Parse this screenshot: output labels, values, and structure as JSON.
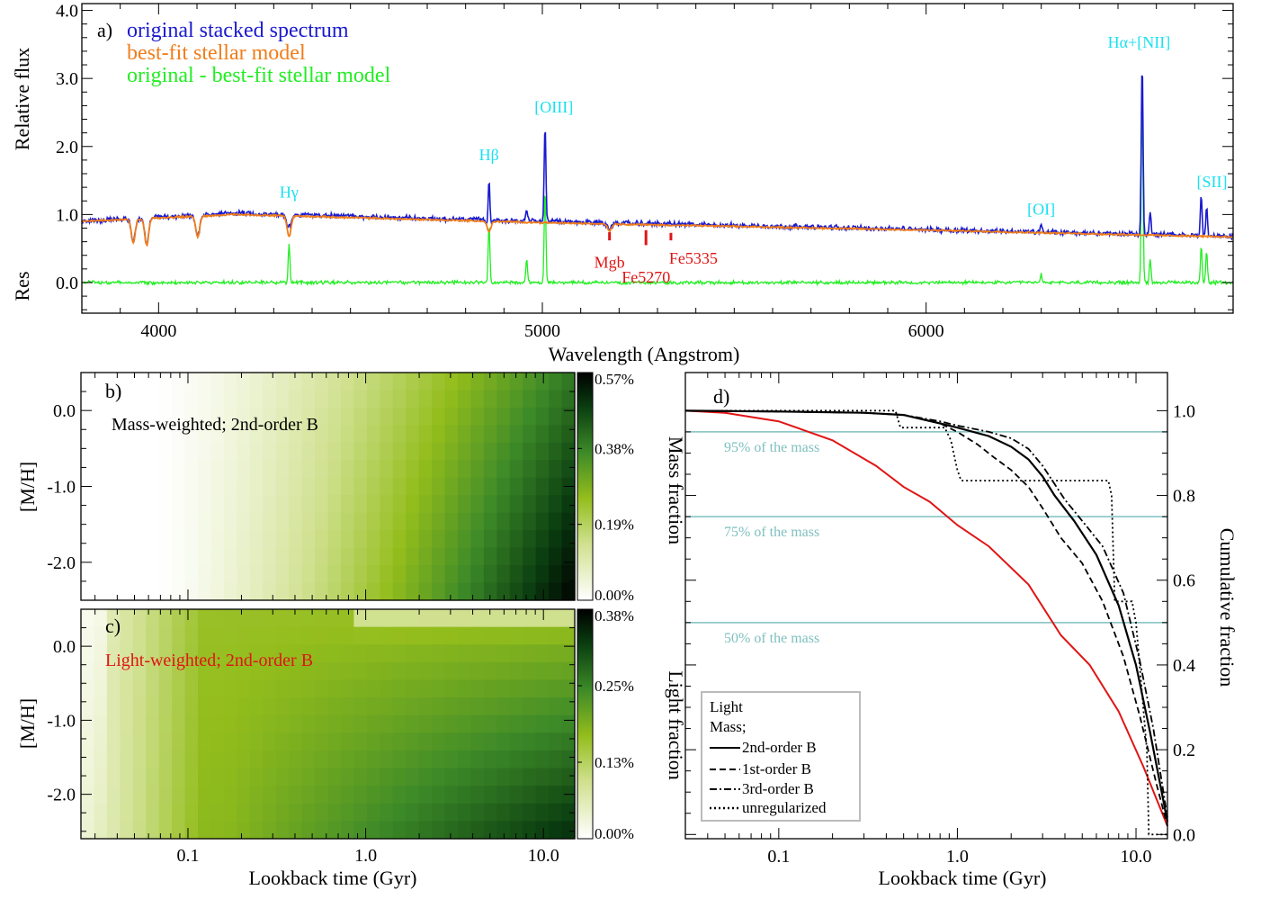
{
  "colors": {
    "original": "#1a1ad0",
    "model": "#f07d1a",
    "residual": "#22ee22",
    "emission_label": "#19e0f0",
    "absorption_label": "#e01515",
    "light": "#e01515",
    "mass": "#000000",
    "reference": "#7fbfbf",
    "colormap": [
      "#ffffff",
      "#cfe08e",
      "#93bd1c",
      "#3d8a28",
      "#0a3d10",
      "#000000"
    ]
  },
  "chart_data": [
    {
      "id": "a",
      "type": "line",
      "panel_label": "a)",
      "xlabel": "Wavelength (Angstrom)",
      "ylabel": "Relative flux",
      "ylabel_res": "Res",
      "xlim": [
        3800,
        6800
      ],
      "ylim": [
        -0.45,
        4.1
      ],
      "xticks": [
        4000,
        5000,
        6000
      ],
      "yticks": [
        0.0,
        1.0,
        2.0,
        3.0,
        4.0
      ],
      "ytick_labels": [
        "0.0",
        "1.0",
        "2.0",
        "3.0",
        "4.0"
      ],
      "series": [
        {
          "name": "original stacked spectrum",
          "key": "original",
          "baseline": [
            [
              3800,
              0.9
            ],
            [
              4200,
              1.02
            ],
            [
              5000,
              0.9
            ],
            [
              6000,
              0.78
            ],
            [
              6800,
              0.68
            ]
          ],
          "noise": 0.045
        },
        {
          "name": "best-fit stellar model",
          "key": "model",
          "baseline": [
            [
              3800,
              0.9
            ],
            [
              4200,
              1.0
            ],
            [
              5000,
              0.88
            ],
            [
              6000,
              0.77
            ],
            [
              6800,
              0.67
            ]
          ],
          "noise": 0.015
        },
        {
          "name": "original - best-fit stellar model",
          "key": "residual",
          "baseline": [
            [
              3800,
              0.0
            ],
            [
              6800,
              0.0
            ]
          ],
          "noise": 0.03
        }
      ],
      "emission_lines": [
        {
          "wave": 4340,
          "peak": 1.15,
          "res": 0.55
        },
        {
          "wave": 4861,
          "peak": 1.65,
          "res": 0.85
        },
        {
          "wave": 4959,
          "peak": 1.1,
          "res": 0.35
        },
        {
          "wave": 5007,
          "peak": 2.35,
          "res": 1.4
        },
        {
          "wave": 6300,
          "peak": 0.85,
          "res": 0.12
        },
        {
          "wave": 6563,
          "peak": 3.3,
          "res": 2.75
        },
        {
          "wave": 6584,
          "peak": 1.05,
          "res": 0.35
        },
        {
          "wave": 6717,
          "peak": 1.3,
          "res": 0.55
        },
        {
          "wave": 6731,
          "peak": 1.1,
          "res": 0.45
        }
      ],
      "absorption_lines": [
        {
          "wave": 3934,
          "depth": 0.35
        },
        {
          "wave": 3969,
          "depth": 0.4
        },
        {
          "wave": 4102,
          "depth": 0.3
        },
        {
          "wave": 4340,
          "depth": 0.3
        },
        {
          "wave": 4861,
          "depth": 0.15
        },
        {
          "wave": 5175,
          "depth": 0.1
        }
      ],
      "line_labels": [
        {
          "text": "Hγ",
          "wave": 4340,
          "y": 1.25,
          "kind": "emission"
        },
        {
          "text": "Hβ",
          "wave": 4861,
          "y": 1.8,
          "kind": "emission"
        },
        {
          "text": "[OIII]",
          "wave": 5030,
          "y": 2.5,
          "kind": "emission"
        },
        {
          "text": "[OI]",
          "wave": 6300,
          "y": 1.0,
          "kind": "emission"
        },
        {
          "text": "Hα+[NII]",
          "wave": 6555,
          "y": 3.45,
          "kind": "emission"
        },
        {
          "text": "[SII]",
          "wave": 6745,
          "y": 1.4,
          "kind": "emission"
        }
      ],
      "index_labels": [
        {
          "text": "Mgb",
          "wave": 5175,
          "y": 0.22,
          "tick_top": 0.74,
          "tick_bottom": 0.62
        },
        {
          "text": "Fe5270",
          "wave": 5270,
          "y": 0.0,
          "tick_top": 0.77,
          "tick_bottom": 0.55
        },
        {
          "text": "Fe5335",
          "wave": 5335,
          "y": 0.28,
          "tick_top": 0.73,
          "tick_bottom": 0.62
        }
      ]
    },
    {
      "id": "b",
      "type": "heatmap",
      "panel_label": "b)",
      "annotation": "Mass-weighted; 2nd-order B",
      "ylabel": "[M/H]",
      "xlim": [
        0.025,
        15
      ],
      "xscale": "log",
      "ylim": [
        -2.5,
        0.5
      ],
      "yticks": [
        0.0,
        -1.0,
        -2.0
      ],
      "ytick_labels": [
        "0.0",
        "-1.0",
        "-2.0"
      ],
      "colorbar_label": "Mass fraction",
      "colorbar_ticks": [
        "0.57%",
        "0.38%",
        "0.19%",
        "0.00%"
      ],
      "colorbar_max": 0.57
    },
    {
      "id": "c",
      "type": "heatmap",
      "panel_label": "c)",
      "annotation": "Light-weighted; 2nd-order B",
      "xlabel": "Lookback time (Gyr)",
      "ylabel": "[M/H]",
      "xlim": [
        0.025,
        15
      ],
      "xscale": "log",
      "xticks": [
        0.1,
        1.0,
        10.0
      ],
      "xtick_labels": [
        "0.1",
        "1.0",
        "10.0"
      ],
      "ylim": [
        -2.6,
        0.5
      ],
      "yticks": [
        0.0,
        -1.0,
        -2.0
      ],
      "ytick_labels": [
        "0.0",
        "-1.0",
        "-2.0"
      ],
      "colorbar_label": "Light fraction",
      "colorbar_ticks": [
        "0.38%",
        "0.25%",
        "0.13%",
        "0.00%"
      ],
      "colorbar_max": 0.38
    },
    {
      "id": "d",
      "type": "line",
      "panel_label": "d)",
      "xlabel": "Lookback time (Gyr)",
      "ylabel": "Cumulative fraction",
      "xscale": "log",
      "xlim": [
        0.03,
        15
      ],
      "xticks": [
        0.1,
        1.0,
        10.0
      ],
      "xtick_labels": [
        "0.1",
        "1.0",
        "10.0"
      ],
      "ylim": [
        -0.01,
        1.09
      ],
      "yticks": [
        0.0,
        0.2,
        0.4,
        0.6,
        0.8,
        1.0
      ],
      "ytick_labels": [
        "0.0",
        "0.2",
        "0.4",
        "0.6",
        "0.8",
        "1.0"
      ],
      "reference_lines": [
        {
          "y": 0.95,
          "label": "95% of the mass"
        },
        {
          "y": 0.75,
          "label": "75% of the mass"
        },
        {
          "y": 0.5,
          "label": "50% of the mass"
        }
      ],
      "legend_title_light": "Light",
      "legend_title_mass": "Mass;",
      "series": [
        {
          "name": "Light",
          "key": "light",
          "dash": "",
          "x": [
            0.03,
            0.05,
            0.1,
            0.2,
            0.35,
            0.5,
            0.7,
            1.0,
            1.5,
            2.5,
            3.8,
            5.5,
            8.0,
            11.0,
            15.0
          ],
          "y": [
            1.0,
            0.995,
            0.975,
            0.93,
            0.87,
            0.82,
            0.785,
            0.73,
            0.68,
            0.59,
            0.47,
            0.4,
            0.29,
            0.16,
            0.02
          ]
        },
        {
          "name": "2nd-order B",
          "key": "mass",
          "dash": "",
          "x": [
            0.03,
            0.1,
            0.3,
            0.5,
            0.8,
            1.0,
            1.5,
            2.0,
            2.5,
            3.0,
            3.5,
            4.5,
            6.0,
            8.0,
            10.0,
            12.0,
            15.0
          ],
          "y": [
            1.0,
            0.998,
            0.995,
            0.99,
            0.97,
            0.96,
            0.94,
            0.915,
            0.885,
            0.845,
            0.8,
            0.74,
            0.66,
            0.54,
            0.4,
            0.24,
            0.03
          ]
        },
        {
          "name": "1st-order B",
          "key": "mass",
          "dash": "7,4",
          "x": [
            0.03,
            0.1,
            0.3,
            0.5,
            0.8,
            1.0,
            1.3,
            1.6,
            2.0,
            2.5,
            3.0,
            3.8,
            5.0,
            6.5,
            8.5,
            10.5,
            13.0,
            15.0
          ],
          "y": [
            1.0,
            0.998,
            0.995,
            0.99,
            0.97,
            0.95,
            0.92,
            0.89,
            0.86,
            0.82,
            0.77,
            0.7,
            0.64,
            0.55,
            0.42,
            0.28,
            0.12,
            0.02
          ]
        },
        {
          "name": "3rd-order B",
          "key": "mass",
          "dash": "8,3,2,3",
          "x": [
            0.03,
            0.1,
            0.3,
            0.5,
            0.8,
            1.0,
            1.5,
            2.0,
            2.5,
            3.0,
            4.0,
            5.0,
            6.5,
            8.5,
            10.5,
            12.5,
            15.0
          ],
          "y": [
            1.0,
            0.998,
            0.995,
            0.99,
            0.975,
            0.965,
            0.95,
            0.935,
            0.91,
            0.87,
            0.79,
            0.74,
            0.68,
            0.57,
            0.41,
            0.25,
            0.04
          ]
        },
        {
          "name": "unregularized",
          "key": "mass",
          "dash": "2,3",
          "x": [
            0.03,
            0.45,
            0.48,
            0.85,
            0.92,
            1.0,
            1.05,
            7.0,
            7.3,
            7.6,
            9.5,
            10.0,
            11.5,
            11.8,
            15.0
          ],
          "y": [
            1.0,
            1.0,
            0.96,
            0.96,
            0.93,
            0.86,
            0.835,
            0.835,
            0.8,
            0.55,
            0.55,
            0.5,
            0.2,
            0.0,
            0.0
          ]
        }
      ]
    }
  ]
}
